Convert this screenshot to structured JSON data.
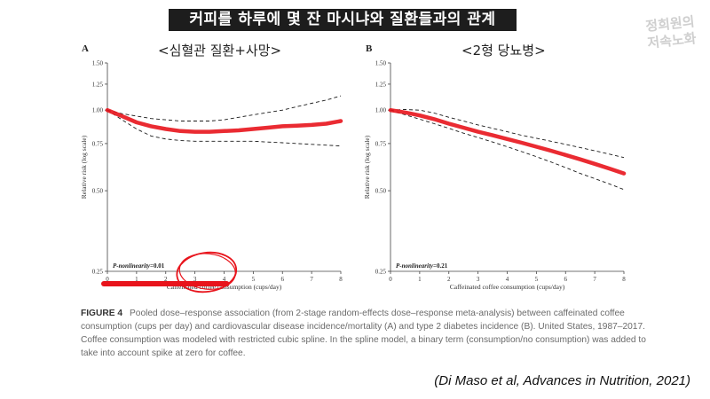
{
  "header": {
    "title": "커피를 하루에 몇 잔 마시냐와 질환들과의 관계"
  },
  "watermark": {
    "line1": "정희원의",
    "line2": "저속노화"
  },
  "figure": {
    "caption_label": "FIGURE 4",
    "caption_text": "Pooled dose–response association (from 2-stage random-effects dose–response meta-analysis) between caffeinated coffee consumption (cups per day) and cardiovascular disease incidence/mortality (A) and type 2 diabetes incidence (B). United States, 1987–2017. Coffee consumption was modeled with restricted cubic spline. In the spline model, a binary term (consumption/no consumption) was added to take into account spike at zero for coffee."
  },
  "citation": "(Di Maso et al, Advances in Nutrition, 2021)",
  "colors": {
    "accent": "#e8141c",
    "curve": "#e8141c",
    "ci": "#1a1a1a",
    "axis": "#444444"
  },
  "chart_data": [
    {
      "type": "line",
      "panel_letter": "A",
      "subtitle": "<심혈관 질환+사망>",
      "xlabel": "Caffeinated coffee consumption (cups/day)",
      "ylabel": "Relative risk (log scale)",
      "ylog": true,
      "xlim": [
        0,
        8
      ],
      "ylim": [
        0.25,
        1.5
      ],
      "xticks": [
        0,
        1,
        2,
        3,
        4,
        5,
        6,
        7,
        8
      ],
      "yticks": [
        0.25,
        0.5,
        0.75,
        1.0,
        1.25,
        1.5
      ],
      "ytick_labels": [
        "0.25",
        "0.50",
        "0.75",
        "1.00",
        "1.25",
        "1.50"
      ],
      "annotation_label": "P-nonlinearity",
      "annotation_value": "=0.01",
      "x": [
        0,
        0.5,
        1,
        1.5,
        2,
        2.5,
        3,
        3.5,
        4,
        4.5,
        5,
        5.5,
        6,
        6.5,
        7,
        7.5,
        8
      ],
      "series": [
        {
          "values": [
            1.0,
            0.95,
            0.9,
            0.87,
            0.85,
            0.835,
            0.83,
            0.83,
            0.835,
            0.84,
            0.85,
            0.86,
            0.87,
            0.875,
            0.88,
            0.89,
            0.91
          ]
        },
        {
          "values": [
            1.0,
            0.92,
            0.85,
            0.8,
            0.78,
            0.77,
            0.765,
            0.765,
            0.765,
            0.765,
            0.765,
            0.76,
            0.755,
            0.75,
            0.745,
            0.74,
            0.735
          ]
        },
        {
          "values": [
            1.0,
            0.97,
            0.95,
            0.93,
            0.92,
            0.91,
            0.91,
            0.91,
            0.92,
            0.94,
            0.96,
            0.98,
            1.0,
            1.03,
            1.06,
            1.09,
            1.13
          ]
        }
      ],
      "highlight_range": [
        0,
        4
      ],
      "circled_range": [
        2.5,
        4.3
      ]
    },
    {
      "type": "line",
      "panel_letter": "B",
      "subtitle": "<2형 당뇨병>",
      "xlabel": "Caffeinated coffee consumption (cups/day)",
      "ylabel": "Relative risk (log scale)",
      "ylog": true,
      "xlim": [
        0,
        8
      ],
      "ylim": [
        0.25,
        1.5
      ],
      "xticks": [
        0,
        1,
        2,
        3,
        4,
        5,
        6,
        7,
        8
      ],
      "yticks": [
        0.25,
        0.5,
        0.75,
        1.0,
        1.25,
        1.5
      ],
      "ytick_labels": [
        "0.25",
        "0.50",
        "0.75",
        "1.00",
        "1.25",
        "1.50"
      ],
      "annotation_label": "P-nonlinearity",
      "annotation_value": "=0.21",
      "x": [
        0,
        0.5,
        1,
        1.5,
        2,
        2.5,
        3,
        3.5,
        4,
        4.5,
        5,
        5.5,
        6,
        6.5,
        7,
        7.5,
        8
      ],
      "series": [
        {
          "values": [
            1.0,
            0.98,
            0.955,
            0.925,
            0.89,
            0.86,
            0.83,
            0.805,
            0.78,
            0.755,
            0.73,
            0.705,
            0.68,
            0.655,
            0.63,
            0.605,
            0.58
          ]
        },
        {
          "values": [
            1.0,
            0.96,
            0.925,
            0.89,
            0.855,
            0.82,
            0.79,
            0.76,
            0.73,
            0.7,
            0.67,
            0.64,
            0.61,
            0.58,
            0.555,
            0.53,
            0.505
          ]
        },
        {
          "values": [
            1.0,
            1.005,
            1.0,
            0.975,
            0.94,
            0.91,
            0.88,
            0.855,
            0.83,
            0.805,
            0.785,
            0.765,
            0.745,
            0.725,
            0.705,
            0.685,
            0.665
          ]
        }
      ]
    }
  ]
}
